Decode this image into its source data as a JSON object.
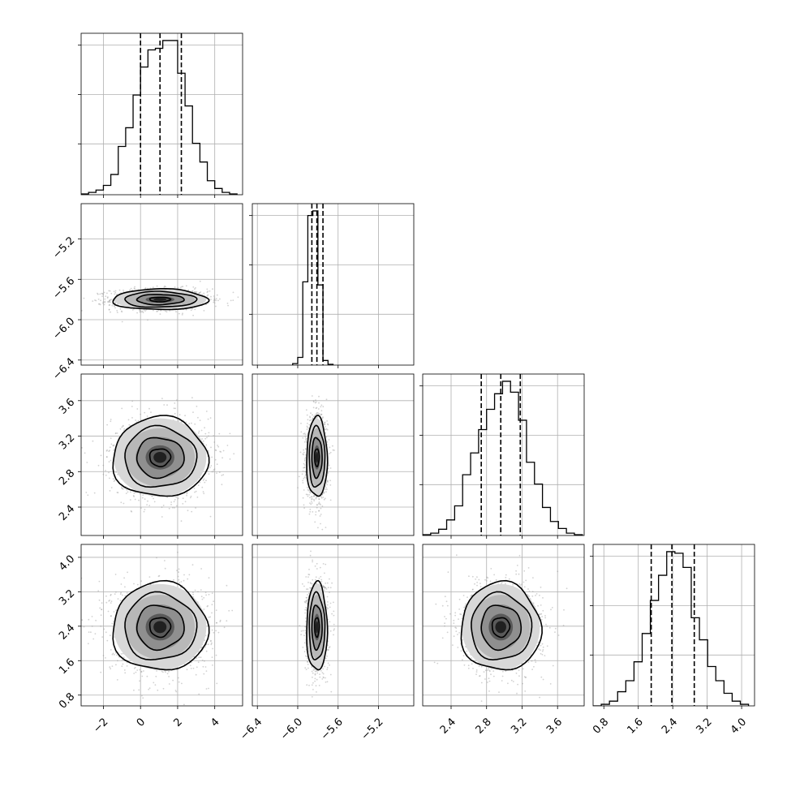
{
  "chart_data": {
    "type": "corner",
    "style": {
      "grid": true,
      "hist_color": "#000000",
      "contour_color": "#000000",
      "scatter_color": "#9a9a9a",
      "quantile_line": "dashed"
    },
    "parameters": [
      {
        "range": [
          -3.2,
          5.5
        ],
        "ticks": [
          "-2",
          "0",
          "2",
          "4"
        ],
        "tick_values": [
          -2,
          0,
          2,
          4
        ],
        "quantiles": [
          0.0,
          1.05,
          2.2
        ],
        "hist_bin_edges": [
          -3.2,
          -2.8,
          -2.4,
          -2.0,
          -1.6,
          -1.2,
          -0.8,
          -0.4,
          0.0,
          0.4,
          0.8,
          1.2,
          1.6,
          2.0,
          2.4,
          2.8,
          3.2,
          3.6,
          4.0,
          4.4,
          4.8,
          5.2
        ],
        "hist_counts": [
          0.005,
          0.015,
          0.03,
          0.06,
          0.13,
          0.31,
          0.43,
          0.64,
          0.82,
          0.93,
          0.94,
          0.99,
          0.99,
          0.78,
          0.57,
          0.33,
          0.21,
          0.09,
          0.04,
          0.015,
          0.005
        ]
      },
      {
        "range": [
          -6.45,
          -4.85
        ],
        "ticks": [
          "-6.4",
          "-6.0",
          "-5.6",
          "-5.2"
        ],
        "tick_values": [
          -6.4,
          -6.0,
          -5.6,
          -5.2
        ],
        "quantiles": [
          -5.86,
          -5.81,
          -5.75
        ],
        "hist_bin_edges": [
          -6.05,
          -6.0,
          -5.95,
          -5.9,
          -5.85,
          -5.8,
          -5.75,
          -5.7,
          -5.65
        ],
        "hist_counts": [
          0.01,
          0.05,
          0.54,
          0.97,
          1.0,
          0.52,
          0.03,
          0.005
        ]
      },
      {
        "range": [
          2.08,
          3.9
        ],
        "ticks": [
          "2.4",
          "2.8",
          "3.2",
          "3.6"
        ],
        "tick_values": [
          2.4,
          2.8,
          3.2,
          3.6
        ],
        "quantiles": [
          2.74,
          2.96,
          3.18
        ],
        "hist_bin_edges": [
          2.08,
          2.17,
          2.26,
          2.35,
          2.44,
          2.53,
          2.62,
          2.71,
          2.8,
          2.89,
          2.98,
          3.07,
          3.16,
          3.25,
          3.34,
          3.43,
          3.52,
          3.61,
          3.7,
          3.79,
          3.88
        ],
        "hist_counts": [
          0.005,
          0.015,
          0.04,
          0.1,
          0.19,
          0.39,
          0.53,
          0.68,
          0.81,
          0.91,
          0.99,
          0.92,
          0.74,
          0.47,
          0.33,
          0.18,
          0.09,
          0.045,
          0.015,
          0.005
        ]
      },
      {
        "range": [
          0.55,
          4.3
        ],
        "ticks": [
          "0.8",
          "1.6",
          "2.4",
          "3.2",
          "4.0"
        ],
        "tick_values": [
          0.8,
          1.6,
          2.4,
          3.2,
          4.0
        ],
        "quantiles": [
          1.9,
          2.38,
          2.9
        ],
        "hist_bin_edges": [
          0.55,
          0.74,
          0.93,
          1.12,
          1.31,
          1.5,
          1.69,
          1.88,
          2.07,
          2.26,
          2.45,
          2.64,
          2.83,
          3.02,
          3.21,
          3.4,
          3.59,
          3.78,
          3.97,
          4.16
        ],
        "hist_counts": [
          0.0,
          0.01,
          0.03,
          0.09,
          0.16,
          0.28,
          0.46,
          0.67,
          0.83,
          0.98,
          0.97,
          0.88,
          0.56,
          0.42,
          0.25,
          0.16,
          0.08,
          0.03,
          0.01
        ]
      }
    ],
    "pairs": [
      {
        "x": 0,
        "y": 1,
        "mean": [
          1.05,
          -5.8
        ],
        "sd": [
          1.25,
          0.05
        ],
        "contours_2d_density": [
          0.34,
          0.52,
          0.73,
          0.84
        ]
      },
      {
        "x": 0,
        "y": 2,
        "mean": [
          1.05,
          2.96
        ],
        "sd": [
          1.25,
          0.22
        ],
        "contours_2d_density": [
          0.34,
          0.52,
          0.73,
          0.84
        ]
      },
      {
        "x": 1,
        "y": 2,
        "mean": [
          -5.81,
          2.96
        ],
        "sd": [
          0.05,
          0.22
        ],
        "contours_2d_density": [
          0.34,
          0.52,
          0.73,
          0.84
        ]
      },
      {
        "x": 0,
        "y": 3,
        "mean": [
          1.05,
          2.38
        ],
        "sd": [
          1.25,
          0.5
        ],
        "contours_2d_density": [
          0.34,
          0.52,
          0.73,
          0.84
        ]
      },
      {
        "x": 1,
        "y": 3,
        "mean": [
          -5.81,
          2.38
        ],
        "sd": [
          0.05,
          0.5
        ],
        "contours_2d_density": [
          0.34,
          0.52,
          0.73,
          0.84
        ]
      },
      {
        "x": 2,
        "y": 3,
        "mean": [
          2.96,
          2.38
        ],
        "sd": [
          0.22,
          0.5
        ],
        "contours_2d_density": [
          0.34,
          0.52,
          0.73,
          0.84
        ]
      }
    ]
  }
}
